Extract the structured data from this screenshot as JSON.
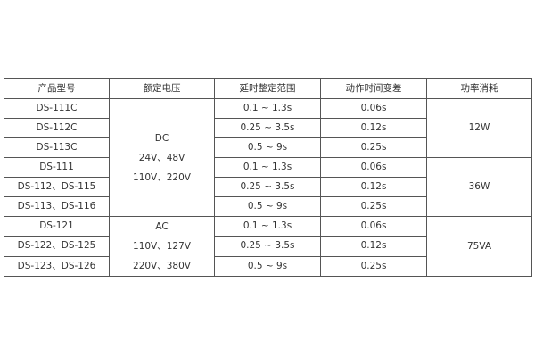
{
  "headers": [
    "产品型号",
    "额定电压",
    "延时整定范围",
    "动作时间变差",
    "功率消耗"
  ],
  "rows": [
    {
      "model": "DS-111C",
      "range": "0.1 ~ 1.3s",
      "variation": "0.06s"
    },
    {
      "model": "DS-112C",
      "range": "0.25 ~ 3.5s",
      "variation": "0.12s"
    },
    {
      "model": "DS-113C",
      "range": "0.5 ~ 9s",
      "variation": "0.25s"
    },
    {
      "model": "DS-111",
      "range": "0.1 ~ 1.3s",
      "variation": "0.06s"
    },
    {
      "model": "DS-112、DS-115",
      "range": "0.25 ~ 3.5s",
      "variation": "0.12s"
    },
    {
      "model": "DS-113、DS-116",
      "range": "0.5 ~ 9s",
      "variation": "0.25s"
    },
    {
      "model": "DS-121",
      "range": "0.1 ~ 1.3s",
      "variation": "0.06s"
    },
    {
      "model": "DS-122、DS-125",
      "range": "0.25 ~ 3.5s",
      "variation": "0.12s"
    },
    {
      "model": "DS-123、DS-126",
      "range": "0.5 ~ 9s",
      "variation": "0.25s"
    }
  ],
  "voltage_groups": [
    {
      "lines": [
        "DC",
        "24V、48V",
        "110V、220V"
      ]
    },
    {
      "lines": [
        "AC",
        "110V、127V",
        "220V、380V"
      ]
    }
  ],
  "power_groups": [
    "12W",
    "36W",
    "75VA"
  ]
}
